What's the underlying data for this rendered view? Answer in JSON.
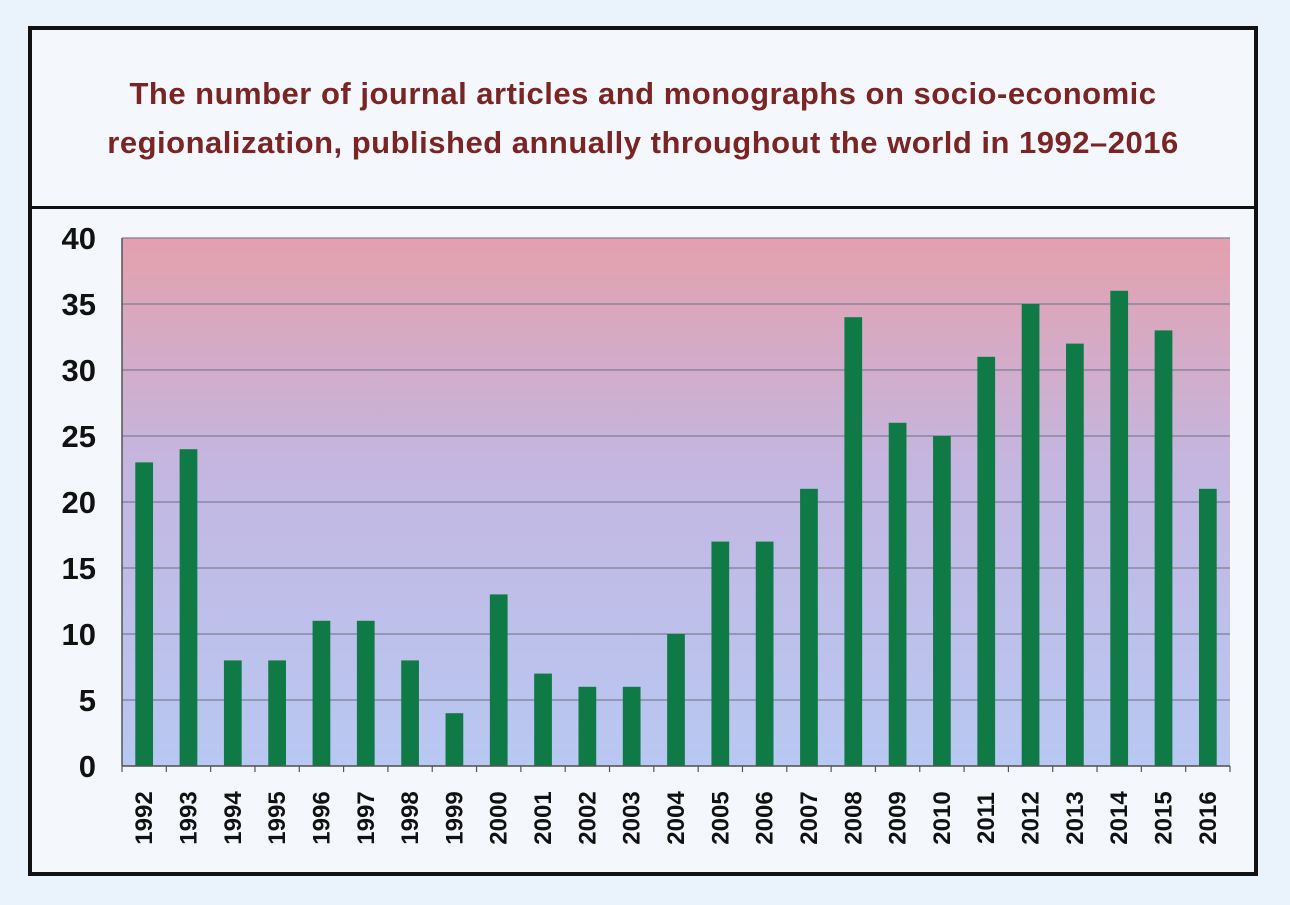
{
  "chart_data": {
    "type": "bar",
    "title": "The number of journal articles and monographs on socio-economic regionalization, published annually throughout the world in 1992–2016",
    "xlabel": "",
    "ylabel": "",
    "ylim": [
      0,
      40
    ],
    "yticks": [
      0,
      5,
      10,
      15,
      20,
      25,
      30,
      35,
      40
    ],
    "grid": true,
    "legend": "none",
    "categories": [
      "1992",
      "1993",
      "1994",
      "1995",
      "1996",
      "1997",
      "1998",
      "1999",
      "2000",
      "2001",
      "2002",
      "2003",
      "2004",
      "2005",
      "2006",
      "2007",
      "2008",
      "2009",
      "2010",
      "2011",
      "2012",
      "2013",
      "2014",
      "2015",
      "2016"
    ],
    "values": [
      23,
      24,
      8,
      8,
      11,
      11,
      8,
      4,
      13,
      7,
      6,
      6,
      10,
      17,
      17,
      21,
      34,
      26,
      25,
      31,
      35,
      32,
      36,
      33,
      21
    ],
    "bar_color": "#0f7a45",
    "plot_bg_top": "#e4a0ad",
    "plot_bg_bottom": "#b8c8f2",
    "title_color": "#7a2424"
  }
}
